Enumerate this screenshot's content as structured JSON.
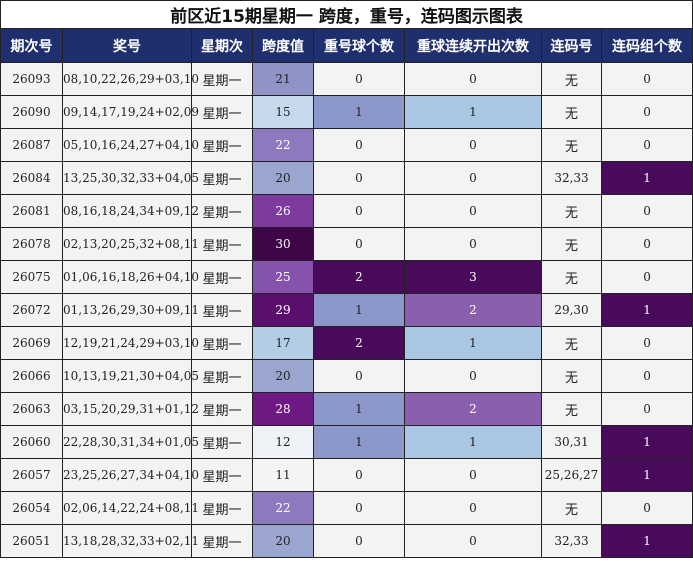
{
  "title": "前区近15期星期一 跨度，重号，连码图示图表",
  "headers": [
    "期次号",
    "奖号",
    "星期次",
    "跨度值",
    "重号球个数",
    "重球连续开出次数",
    "连码号",
    "连码组个数"
  ],
  "colors": {
    "header_bg": "#1f2f6e",
    "cell_bg": "#f3f3f3",
    "span_shades": {
      "11": "#f4f4f4",
      "12": "#eef1f6",
      "15": "#c7d9ec",
      "17": "#b3cde4",
      "20": "#9aa6d0",
      "21": "#9093c6",
      "22": "#8d79bd",
      "25": "#8553ad",
      "26": "#7e3b9f",
      "28": "#6f1a84",
      "29": "#5a0f6d",
      "30": "#3f0548"
    },
    "repeat_shades": {
      "1": "#8b98c9",
      "2": "#4a0a5c"
    },
    "consec_shades": {
      "1": "#a9c6e2",
      "2": "#8a5fae",
      "3": "#4a0a5c"
    },
    "group_shades": {
      "1": "#4a0a5c"
    }
  },
  "rows": [
    {
      "issue": "26093",
      "numbers": "08,10,22,26,29+03,10",
      "weekday": "星期一",
      "span": "21",
      "repeat": "0",
      "consec": "0",
      "lianma": "无",
      "groups": "0"
    },
    {
      "issue": "26090",
      "numbers": "09,14,17,19,24+02,09",
      "weekday": "星期一",
      "span": "15",
      "repeat": "1",
      "consec": "1",
      "lianma": "无",
      "groups": "0"
    },
    {
      "issue": "26087",
      "numbers": "05,10,16,24,27+04,10",
      "weekday": "星期一",
      "span": "22",
      "repeat": "0",
      "consec": "0",
      "lianma": "无",
      "groups": "0"
    },
    {
      "issue": "26084",
      "numbers": "13,25,30,32,33+04,05",
      "weekday": "星期一",
      "span": "20",
      "repeat": "0",
      "consec": "0",
      "lianma": "32,33",
      "groups": "1"
    },
    {
      "issue": "26081",
      "numbers": "08,16,18,24,34+09,12",
      "weekday": "星期一",
      "span": "26",
      "repeat": "0",
      "consec": "0",
      "lianma": "无",
      "groups": "0"
    },
    {
      "issue": "26078",
      "numbers": "02,13,20,25,32+08,11",
      "weekday": "星期一",
      "span": "30",
      "repeat": "0",
      "consec": "0",
      "lianma": "无",
      "groups": "0"
    },
    {
      "issue": "26075",
      "numbers": "01,06,16,18,26+04,10",
      "weekday": "星期一",
      "span": "25",
      "repeat": "2",
      "consec": "3",
      "lianma": "无",
      "groups": "0"
    },
    {
      "issue": "26072",
      "numbers": "01,13,26,29,30+09,11",
      "weekday": "星期一",
      "span": "29",
      "repeat": "1",
      "consec": "2",
      "lianma": "29,30",
      "groups": "1"
    },
    {
      "issue": "26069",
      "numbers": "12,19,21,24,29+03,10",
      "weekday": "星期一",
      "span": "17",
      "repeat": "2",
      "consec": "1",
      "lianma": "无",
      "groups": "0"
    },
    {
      "issue": "26066",
      "numbers": "10,13,19,21,30+04,05",
      "weekday": "星期一",
      "span": "20",
      "repeat": "0",
      "consec": "0",
      "lianma": "无",
      "groups": "0"
    },
    {
      "issue": "26063",
      "numbers": "03,15,20,29,31+01,12",
      "weekday": "星期一",
      "span": "28",
      "repeat": "1",
      "consec": "2",
      "lianma": "无",
      "groups": "0"
    },
    {
      "issue": "26060",
      "numbers": "22,28,30,31,34+01,05",
      "weekday": "星期一",
      "span": "12",
      "repeat": "1",
      "consec": "1",
      "lianma": "30,31",
      "groups": "1"
    },
    {
      "issue": "26057",
      "numbers": "23,25,26,27,34+04,10",
      "weekday": "星期一",
      "span": "11",
      "repeat": "0",
      "consec": "0",
      "lianma": "25,26,27",
      "groups": "1"
    },
    {
      "issue": "26054",
      "numbers": "02,06,14,22,24+08,11",
      "weekday": "星期一",
      "span": "22",
      "repeat": "0",
      "consec": "0",
      "lianma": "无",
      "groups": "0"
    },
    {
      "issue": "26051",
      "numbers": "13,18,28,32,33+02,11",
      "weekday": "星期一",
      "span": "20",
      "repeat": "0",
      "consec": "0",
      "lianma": "32,33",
      "groups": "1"
    }
  ]
}
